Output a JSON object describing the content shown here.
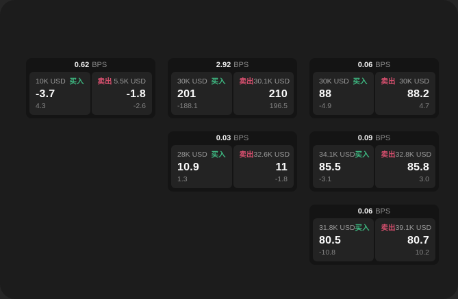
{
  "labels": {
    "bps_unit": "BPS",
    "buy": "买入",
    "sell": "卖出"
  },
  "colors": {
    "page_bg": "#1c1c1c",
    "card_bg": "#141414",
    "panel_bg": "#232323",
    "buy_green": "#3eb881",
    "sell_red": "#d8506f"
  },
  "cards": [
    {
      "bps": "0.62",
      "buy": {
        "amount": "10K USD",
        "price": "-3.7",
        "change": "4.3"
      },
      "sell": {
        "amount": "5.5K USD",
        "price": "-1.8",
        "change": "-2.6"
      }
    },
    {
      "bps": "2.92",
      "buy": {
        "amount": "30K USD",
        "price": "201",
        "change": "-188.1"
      },
      "sell": {
        "amount": "30.1K USD",
        "price": "210",
        "change": "196.5"
      }
    },
    {
      "bps": "0.06",
      "buy": {
        "amount": "30K USD",
        "price": "88",
        "change": "-4.9"
      },
      "sell": {
        "amount": "30K USD",
        "price": "88.2",
        "change": "4.7"
      }
    },
    {
      "bps": "0.03",
      "buy": {
        "amount": "28K USD",
        "price": "10.9",
        "change": "1.3"
      },
      "sell": {
        "amount": "32.6K USD",
        "price": "11",
        "change": "-1.8"
      }
    },
    {
      "bps": "0.09",
      "buy": {
        "amount": "34.1K USD",
        "price": "85.5",
        "change": "-3.1"
      },
      "sell": {
        "amount": "32.8K USD",
        "price": "85.8",
        "change": "3.0"
      }
    },
    {
      "bps": "0.06",
      "buy": {
        "amount": "31.8K USD",
        "price": "80.5",
        "change": "-10.8"
      },
      "sell": {
        "amount": "39.1K USD",
        "price": "80.7",
        "change": "10.2"
      }
    }
  ]
}
